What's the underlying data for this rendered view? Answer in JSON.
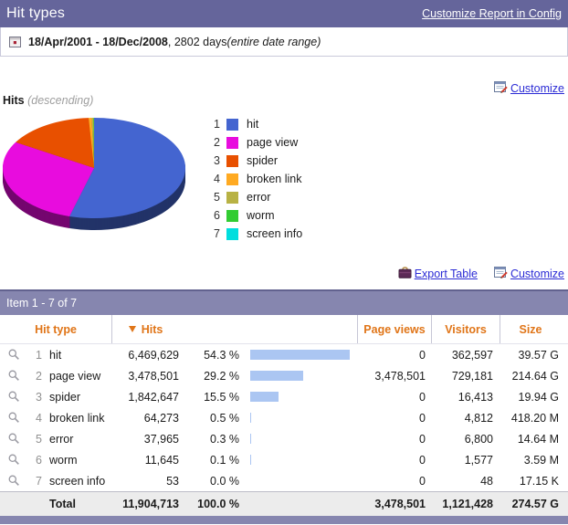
{
  "header": {
    "title": "Hit types",
    "config_link": "Customize Report in Config"
  },
  "date_bar": {
    "range": "18/Apr/2001 - 18/Dec/2008",
    "suffix": ", 2802 days ",
    "note": "(entire date range)"
  },
  "chart_header": {
    "customize": "Customize",
    "title": "Hits",
    "subtitle": "(descending)"
  },
  "table_links": {
    "export": "Export Table",
    "customize": "Customize"
  },
  "table": {
    "pagination": "Item 1 - 7 of 7",
    "columns": {
      "hit_type": "Hit type",
      "hits": "Hits",
      "page_views": "Page views",
      "visitors": "Visitors",
      "size": "Size"
    },
    "rows": [
      {
        "num": "1",
        "label": "hit",
        "hits": "6,469,629",
        "pct": "54.3 %",
        "bar": 54.3,
        "page_views": "0",
        "visitors": "362,597",
        "size": "39.57 G"
      },
      {
        "num": "2",
        "label": "page view",
        "hits": "3,478,501",
        "pct": "29.2 %",
        "bar": 29.2,
        "page_views": "3,478,501",
        "visitors": "729,181",
        "size": "214.64 G"
      },
      {
        "num": "3",
        "label": "spider",
        "hits": "1,842,647",
        "pct": "15.5 %",
        "bar": 15.5,
        "page_views": "0",
        "visitors": "16,413",
        "size": "19.94 G"
      },
      {
        "num": "4",
        "label": "broken link",
        "hits": "64,273",
        "pct": "0.5 %",
        "bar": 0.5,
        "page_views": "0",
        "visitors": "4,812",
        "size": "418.20 M"
      },
      {
        "num": "5",
        "label": "error",
        "hits": "37,965",
        "pct": "0.3 %",
        "bar": 0.3,
        "page_views": "0",
        "visitors": "6,800",
        "size": "14.64 M"
      },
      {
        "num": "6",
        "label": "worm",
        "hits": "11,645",
        "pct": "0.1 %",
        "bar": 0.1,
        "page_views": "0",
        "visitors": "1,577",
        "size": "3.59 M"
      },
      {
        "num": "7",
        "label": "screen info",
        "hits": "53",
        "pct": "0.0 %",
        "bar": 0.0,
        "page_views": "0",
        "visitors": "48",
        "size": "17.15 K"
      }
    ],
    "total": {
      "label": "Total",
      "hits": "11,904,713",
      "pct": "100.0 %",
      "page_views": "3,478,501",
      "visitors": "1,121,428",
      "size": "274.57 G"
    }
  },
  "chart_data": {
    "type": "pie",
    "style": "3d",
    "title": "Hits",
    "sort_order": "descending",
    "legend_position": "right",
    "categories": [
      "hit",
      "page view",
      "spider",
      "broken link",
      "error",
      "worm",
      "screen info"
    ],
    "values": [
      6469629,
      3478501,
      1842647,
      64273,
      37965,
      11645,
      53
    ],
    "percents": [
      54.3,
      29.2,
      15.5,
      0.5,
      0.3,
      0.1,
      0.0
    ],
    "colors": [
      "#4465D0",
      "#E80CDE",
      "#E85000",
      "#FFAA22",
      "#B8B244",
      "#32CC32",
      "#00DEDE"
    ]
  },
  "colors": {
    "titlebar_bg": "#65659B",
    "section_bar_bg": "#8686AF",
    "column_header_text": "#E07518",
    "link_blue": "#2B2BD5",
    "table_bar_fill": "#ABC6F2"
  }
}
